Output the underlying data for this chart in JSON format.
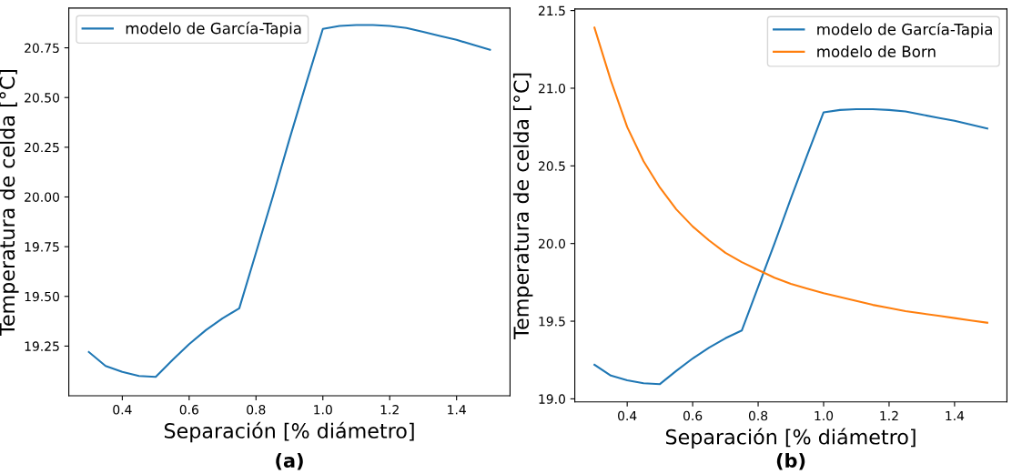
{
  "chart_data": [
    {
      "type": "line",
      "xlabel": "Separación [% diámetro]",
      "ylabel": "Temperatura de celda [°C]",
      "annotations": [
        "(a)"
      ],
      "legend": "top left",
      "x": [
        0.3,
        0.35,
        0.4,
        0.45,
        0.5,
        0.55,
        0.6,
        0.65,
        0.7,
        0.75,
        0.8,
        0.85,
        0.9,
        0.95,
        1.0,
        1.05,
        1.1,
        1.15,
        1.2,
        1.25,
        1.3,
        1.35,
        1.4,
        1.45,
        1.5
      ],
      "series": [
        {
          "name": "modelo de García-Tapia",
          "color": "#1f77b4",
          "values": [
            19.22,
            19.15,
            19.12,
            19.1,
            19.095,
            19.18,
            19.26,
            19.33,
            19.39,
            19.44,
            19.72,
            20.0,
            20.29,
            20.57,
            20.845,
            20.86,
            20.865,
            20.865,
            20.86,
            20.85,
            20.83,
            20.81,
            20.79,
            20.765,
            20.74
          ]
        }
      ],
      "xlim": [
        0.24,
        1.56
      ],
      "xticks": [
        0.4,
        0.6,
        0.8,
        {
          "value": 1.0,
          "label": "1.0"
        },
        1.2,
        1.4
      ],
      "ylim": [
        19.0,
        20.95
      ],
      "yticks": [
        {
          "value": 19.25,
          "label": "19.25"
        },
        {
          "value": 19.5,
          "label": "19.50"
        },
        {
          "value": 19.75,
          "label": "19.75"
        },
        {
          "value": 20.0,
          "label": "20.00"
        },
        {
          "value": 20.25,
          "label": "20.25"
        },
        {
          "value": 20.5,
          "label": "20.50"
        },
        {
          "value": 20.75,
          "label": "20.75"
        }
      ]
    },
    {
      "type": "line",
      "xlabel": "Separación [% diámetro]",
      "ylabel": "Temperatura de celda [°C]",
      "annotations": [
        "(b)"
      ],
      "legend": "top right",
      "x": [
        0.3,
        0.35,
        0.4,
        0.45,
        0.5,
        0.55,
        0.6,
        0.65,
        0.7,
        0.75,
        0.8,
        0.85,
        0.9,
        0.95,
        1.0,
        1.05,
        1.1,
        1.15,
        1.2,
        1.25,
        1.3,
        1.35,
        1.4,
        1.45,
        1.5
      ],
      "series": [
        {
          "name": "modelo de García-Tapia",
          "color": "#1f77b4",
          "values": [
            19.22,
            19.15,
            19.12,
            19.1,
            19.095,
            19.18,
            19.26,
            19.33,
            19.39,
            19.44,
            19.72,
            20.0,
            20.29,
            20.57,
            20.845,
            20.86,
            20.865,
            20.865,
            20.86,
            20.85,
            20.83,
            20.81,
            20.79,
            20.765,
            20.74
          ]
        },
        {
          "name": "modelo de Born",
          "color": "#ff7f0e",
          "values": [
            21.39,
            21.05,
            20.75,
            20.53,
            20.36,
            20.22,
            20.11,
            20.02,
            19.94,
            19.88,
            19.83,
            19.78,
            19.74,
            19.71,
            19.68,
            19.655,
            19.63,
            19.605,
            19.585,
            19.565,
            19.55,
            19.535,
            19.52,
            19.505,
            19.49
          ]
        }
      ],
      "xlim": [
        0.24,
        1.56
      ],
      "xticks": [
        0.4,
        0.6,
        0.8,
        {
          "value": 1.0,
          "label": "1.0"
        },
        1.2,
        1.4
      ],
      "ylim": [
        18.98,
        21.51
      ],
      "yticks": [
        {
          "value": 19.0,
          "label": "19.0"
        },
        {
          "value": 19.5,
          "label": "19.5"
        },
        {
          "value": 20.0,
          "label": "20.0"
        },
        {
          "value": 20.5,
          "label": "20.5"
        },
        {
          "value": 21.0,
          "label": "21.0"
        },
        {
          "value": 21.5,
          "label": "21.5"
        }
      ]
    }
  ]
}
